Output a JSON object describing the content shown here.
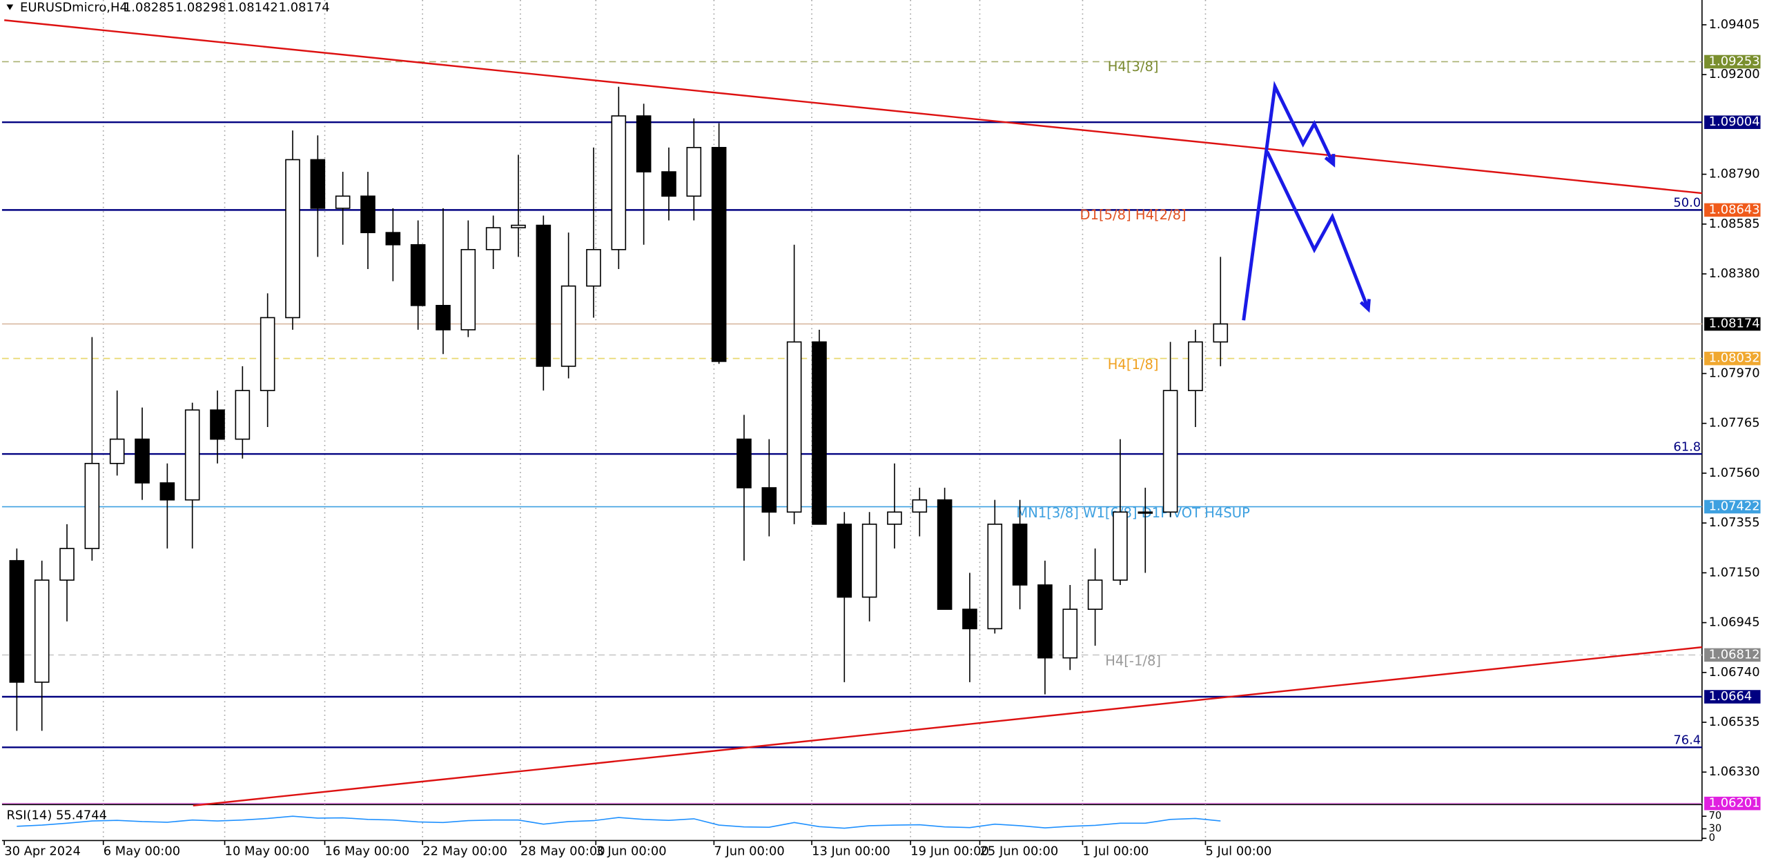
{
  "chart_data": {
    "type": "candlestick",
    "title": "EURUSDmicro,H4",
    "quote": [
      1.08285,
      1.08298,
      1.08142,
      1.08174
    ],
    "xlim": [
      0,
      67.7
    ],
    "ylim": [
      1.06201,
      1.09507
    ],
    "yticks": [
      1.09405,
      {
        "value": 1.092,
        "label": "1.09200"
      },
      {
        "value": 1.0879,
        "label": "1.08790"
      },
      1.08585,
      {
        "value": 1.0838,
        "label": "1.08380"
      },
      {
        "value": 1.0797,
        "label": "1.07970"
      },
      1.07765,
      {
        "value": 1.0756,
        "label": "1.07560"
      },
      1.07355,
      {
        "value": 1.0715,
        "label": "1.07150"
      },
      1.06945,
      {
        "value": 1.0674,
        "label": "1.06740"
      },
      1.06535,
      {
        "value": 1.0633,
        "label": "1.06330"
      }
    ],
    "xticks": [
      {
        "value": 0,
        "label": "30 Apr 2024"
      },
      {
        "value": 3.95,
        "label": "6 May 00:00"
      },
      {
        "value": 8.79,
        "label": "10 May 00:00"
      },
      {
        "value": 12.78,
        "label": "16 May 00:00"
      },
      {
        "value": 16.68,
        "label": "22 May 00:00"
      },
      {
        "value": 20.58,
        "label": "28 May 00:00"
      },
      {
        "value": 23.59,
        "label": "3 Jun 00:00"
      },
      {
        "value": 28.3,
        "label": "7 Jun 00:00"
      },
      {
        "value": 32.2,
        "label": "13 Jun 00:00"
      },
      {
        "value": 36.14,
        "label": "19 Jun 00:00"
      },
      {
        "value": 38.9,
        "label": "25 Jun 00:00"
      },
      {
        "value": 43.0,
        "label": "1 Jul 00:00"
      },
      {
        "value": 47.9,
        "label": "5 Jul 00:00"
      }
    ],
    "grid": true,
    "up_color": "#ffffff",
    "down_color": "#000000",
    "candles": {
      "open": [
        1.072,
        1.067,
        1.0712,
        1.0725,
        1.076,
        1.077,
        1.0752,
        1.0745,
        1.0782,
        1.077,
        1.079,
        1.082,
        1.0885,
        1.0865,
        1.087,
        1.0855,
        1.085,
        1.0825,
        1.0815,
        1.0848,
        1.0857,
        1.0858,
        1.08,
        1.0833,
        1.0848,
        1.0903,
        1.088,
        1.087,
        1.089,
        1.077,
        1.075,
        1.074,
        1.081,
        1.0735,
        1.0705,
        1.0735,
        1.074,
        1.0745,
        1.07,
        1.0692,
        1.0735,
        1.071,
        1.068,
        1.07,
        1.0712,
        1.074,
        1.074,
        1.079,
        1.081
      ],
      "high": [
        1.0725,
        1.072,
        1.0735,
        1.0812,
        1.079,
        1.0783,
        1.076,
        1.0785,
        1.079,
        1.08,
        1.083,
        1.0897,
        1.0895,
        1.088,
        1.088,
        1.0865,
        1.086,
        1.0865,
        1.086,
        1.0862,
        1.0887,
        1.0862,
        1.0855,
        1.089,
        1.0915,
        1.0908,
        1.089,
        1.0902,
        1.09,
        1.078,
        1.077,
        1.085,
        1.0815,
        1.074,
        1.074,
        1.076,
        1.075,
        1.075,
        1.0715,
        1.0745,
        1.0745,
        1.072,
        1.071,
        1.0725,
        1.077,
        1.075,
        1.081,
        1.0815,
        1.0845
      ],
      "low": [
        1.065,
        1.065,
        1.0695,
        1.072,
        1.0755,
        1.0745,
        1.0725,
        1.0725,
        1.076,
        1.0762,
        1.0775,
        1.0815,
        1.0845,
        1.085,
        1.084,
        1.0835,
        1.0815,
        1.0805,
        1.0812,
        1.084,
        1.0845,
        1.079,
        1.0795,
        1.082,
        1.084,
        1.085,
        1.086,
        1.086,
        1.0801,
        1.072,
        1.073,
        1.0735,
        1.0735,
        1.067,
        1.0695,
        1.0725,
        1.073,
        1.07,
        1.067,
        1.069,
        1.07,
        1.0665,
        1.0675,
        1.0685,
        1.071,
        1.0715,
        1.0738,
        1.0775,
        1.08
      ],
      "close": [
        1.067,
        1.0712,
        1.0725,
        1.076,
        1.077,
        1.0752,
        1.0745,
        1.0782,
        1.077,
        1.079,
        1.082,
        1.0885,
        1.0865,
        1.087,
        1.0855,
        1.085,
        1.0825,
        1.0815,
        1.0848,
        1.0857,
        1.0858,
        1.08,
        1.0833,
        1.0848,
        1.0903,
        1.088,
        1.087,
        1.089,
        1.0802,
        1.075,
        1.074,
        1.081,
        1.0735,
        1.0705,
        1.0735,
        1.074,
        1.0745,
        1.07,
        1.0692,
        1.0735,
        1.071,
        1.068,
        1.07,
        1.0712,
        1.074,
        1.074,
        1.079,
        1.081,
        1.08174
      ]
    },
    "levels": [
      {
        "price": 1.09253,
        "color": "#a8b070",
        "dashed": true,
        "name": "H4[3/8]",
        "name_color": "#7a8a30",
        "box": "#7a8f2e"
      },
      {
        "price": 1.09004,
        "color": "#000080",
        "box": "#000080"
      },
      {
        "price": 1.08643,
        "color": "#000080",
        "name": "D1[5/8] H4[2/8]",
        "name_color": "#e05020",
        "fib": "50.0",
        "box": "#f05a1a"
      },
      {
        "price": 1.08174,
        "color": "#d8b8a0",
        "box": "#000000"
      },
      {
        "price": 1.08032,
        "color": "#e8d870",
        "dashed": true,
        "name": "H4[1/8]",
        "name_color": "#f0a020",
        "box": "#f0a830"
      },
      {
        "price": 1.07639,
        "color": "#000080",
        "fib": "61.8"
      },
      {
        "price": 1.07422,
        "color": "#3da0e0",
        "name": "MN1[3/8] W1[6/8] D1PIVOT H4SUP",
        "name_color": "#3da0e0",
        "box": "#3da0e0"
      },
      {
        "price": 1.06812,
        "color": "#c8c8c8",
        "dashed": true,
        "name": "H4[-1/8]",
        "name_color": "#999999",
        "box": "#888888"
      },
      {
        "price": 1.0664,
        "color": "#000080",
        "box": "#000080"
      },
      {
        "price": 1.06432,
        "color": "#000080",
        "fib": "76.4"
      },
      {
        "price": 1.06201,
        "color": "#e080e0",
        "box": "#e020e0"
      }
    ],
    "trendlines": [
      {
        "color": "#dd1111",
        "x": [
          0,
          67.7
        ],
        "y": [
          1.09424,
          1.08712
        ]
      },
      {
        "color": "#dd1111",
        "x": [
          7.53,
          67.7
        ],
        "y": [
          1.06192,
          1.06844
        ]
      }
    ],
    "forecast": [
      {
        "color": "#1a1ae6",
        "x": [
          49.42,
          50.67,
          51.79,
          52.24,
          53.0
        ],
        "y": [
          1.08189,
          1.09151,
          1.08915,
          1.08998,
          1.08832
        ]
      },
      {
        "color": "#1a1ae6",
        "x": [
          50.36,
          52.24,
          52.96,
          54.39
        ],
        "y": [
          1.08883,
          1.0848,
          1.08615,
          1.08235
        ]
      }
    ],
    "rsi": {
      "label": "RSI(14) 55.4744",
      "ylim": [
        0,
        100
      ],
      "yticks": [
        70,
        30,
        0
      ],
      "color": "#1e90ff",
      "values": [
        38,
        42,
        48,
        55,
        57,
        53,
        51,
        58,
        55,
        58,
        63,
        70,
        64,
        65,
        60,
        58,
        52,
        50,
        56,
        58,
        58,
        45,
        53,
        56,
        66,
        60,
        57,
        62,
        42,
        36,
        35,
        50,
        37,
        32,
        40,
        42,
        43,
        36,
        34,
        45,
        40,
        33,
        38,
        41,
        48,
        48,
        60,
        63,
        55
      ]
    }
  }
}
